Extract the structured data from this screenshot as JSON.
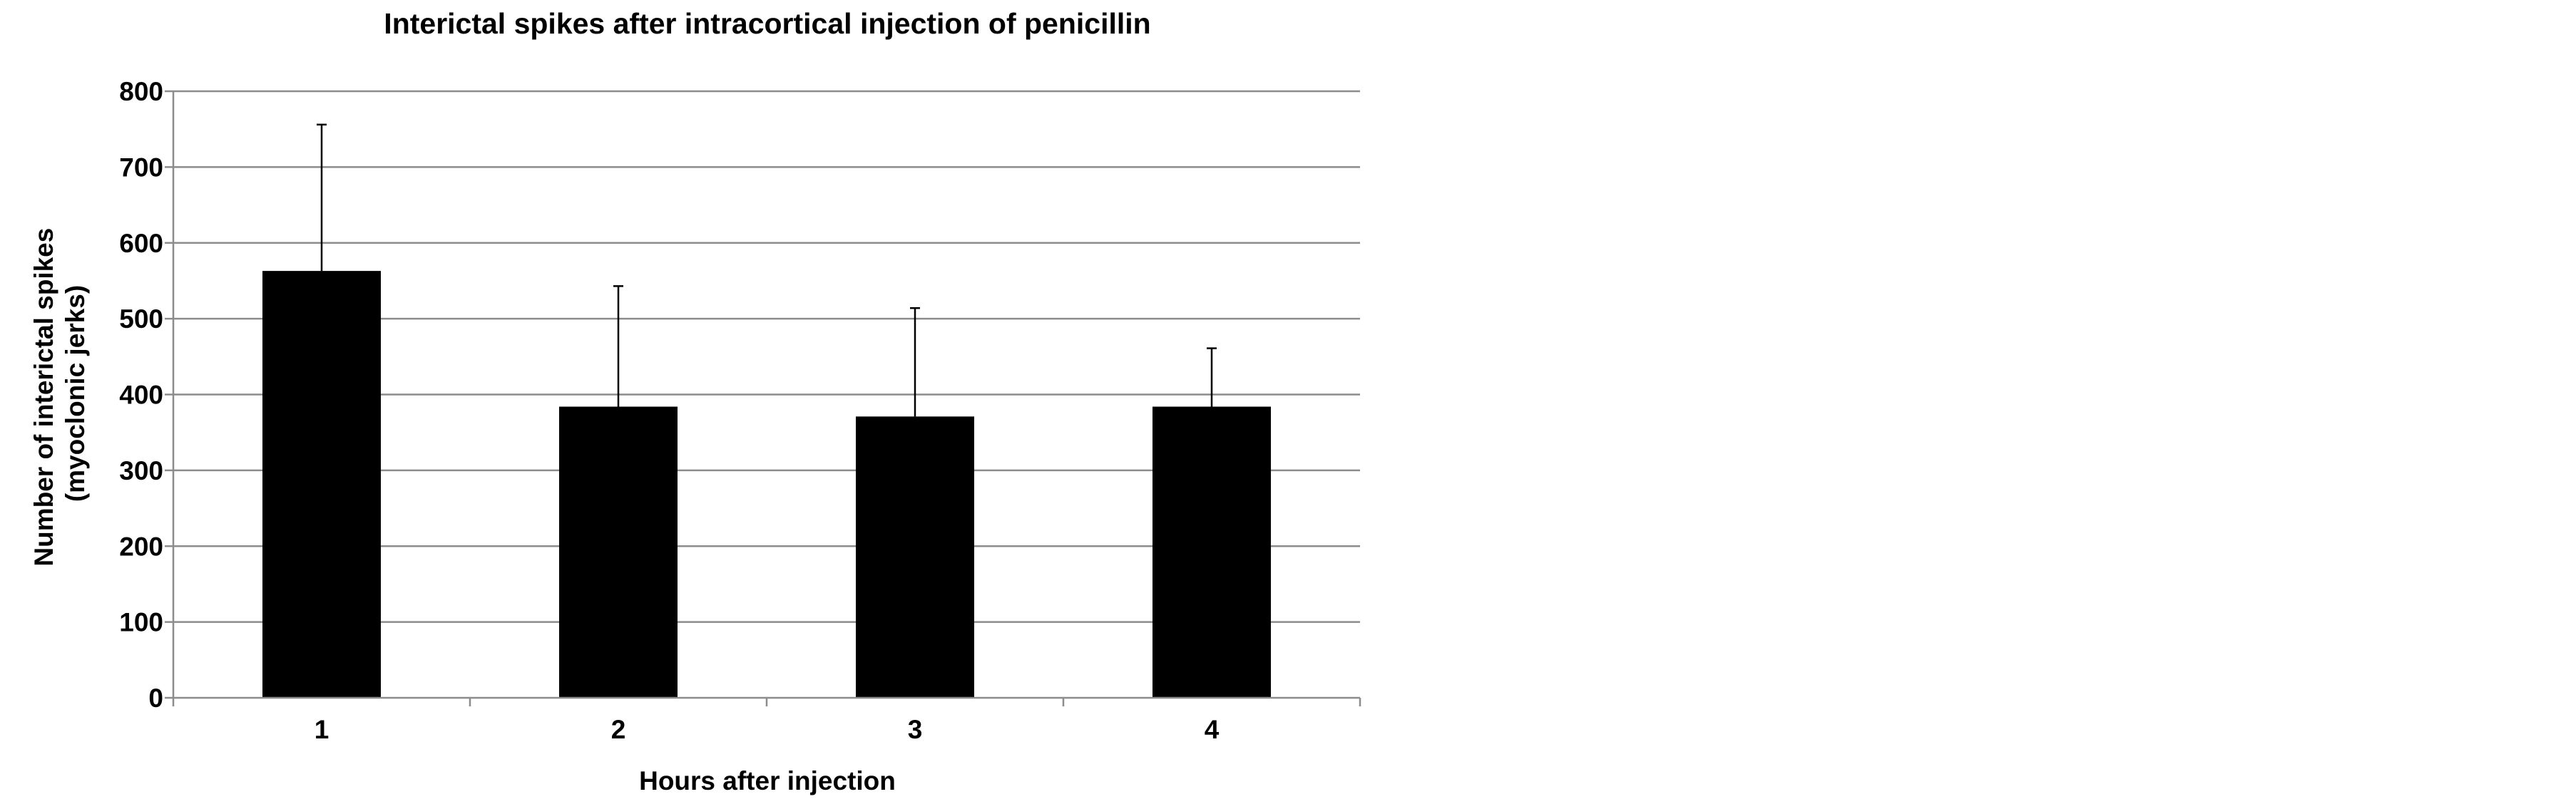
{
  "chart_data": {
    "type": "bar",
    "title": "Interictal spikes after intracortical injection of penicillin",
    "xlabel": "Hours after injection",
    "ylabel_lines": [
      "Number of interictal spikes",
      "(myoclonic jerks)"
    ],
    "categories": [
      "1",
      "2",
      "3",
      "4"
    ],
    "values": [
      563,
      384,
      371,
      384
    ],
    "error_upper": [
      756,
      543,
      514,
      461
    ],
    "ylim": [
      0,
      800
    ],
    "yticks": [
      "0",
      "100",
      "200",
      "300",
      "400",
      "500",
      "600",
      "700",
      "800"
    ],
    "grid": true,
    "legend": "none",
    "colors": {
      "bar": "#000000",
      "grid": "#8c8c8c"
    }
  }
}
